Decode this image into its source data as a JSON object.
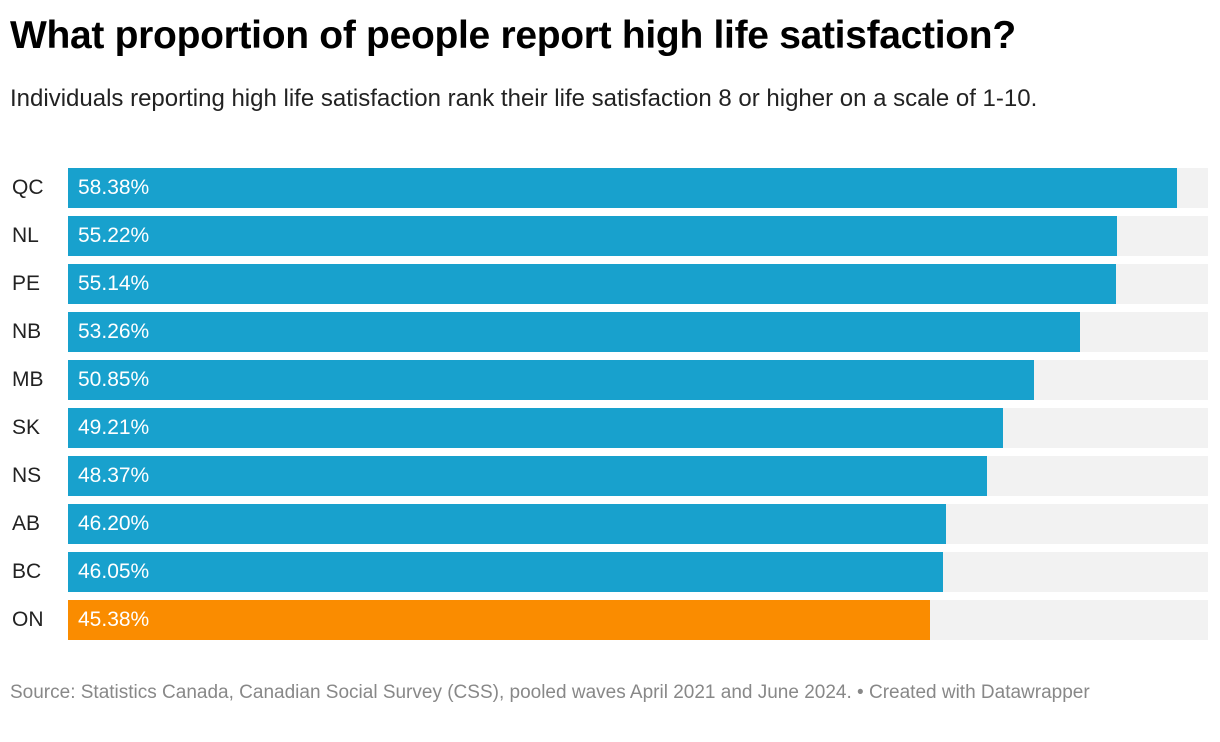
{
  "header": {
    "title": "What proportion of people report high life satisfaction?",
    "subtitle": "Individuals reporting high life satisfaction rank their life satisfaction 8 or higher on a scale of 1-10."
  },
  "colors": {
    "default_bar": "#18a1cd",
    "highlight_bar": "#fa8c00",
    "track": "#f2f2f2"
  },
  "chart_data": {
    "type": "bar",
    "orientation": "horizontal",
    "title": "What proportion of people report high life satisfaction?",
    "subtitle": "Individuals reporting high life satisfaction rank their life satisfaction 8 or higher on a scale of 1-10.",
    "xlabel": "",
    "ylabel": "",
    "xlim": [
      0,
      60
    ],
    "grid": false,
    "unit": "%",
    "categories": [
      "QC",
      "NL",
      "PE",
      "NB",
      "MB",
      "SK",
      "NS",
      "AB",
      "BC",
      "ON"
    ],
    "values": [
      58.38,
      55.22,
      55.14,
      53.26,
      50.85,
      49.21,
      48.37,
      46.2,
      46.05,
      45.38
    ],
    "labels": [
      "58.38%",
      "55.22%",
      "55.14%",
      "53.26%",
      "50.85%",
      "49.21%",
      "48.37%",
      "46.20%",
      "46.05%",
      "45.38%"
    ],
    "highlighted": [
      "ON"
    ]
  },
  "footer": {
    "text": "Source: Statistics Canada, Canadian Social Survey (CSS), pooled waves April 2021 and June 2024. • Created with Datawrapper"
  }
}
